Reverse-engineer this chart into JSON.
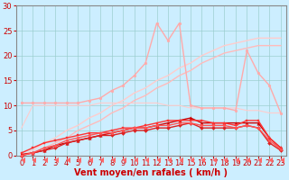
{
  "background_color": "#cceeff",
  "grid_color": "#99cccc",
  "xlabel": "Vent moyen/en rafales ( km/h )",
  "xlabel_color": "#cc0000",
  "xlabel_fontsize": 7,
  "tick_color": "#cc0000",
  "tick_fontsize": 6,
  "ylim": [
    0,
    30
  ],
  "yticks": [
    0,
    5,
    10,
    15,
    20,
    25,
    30
  ],
  "x": [
    0,
    1,
    2,
    3,
    4,
    5,
    6,
    7,
    8,
    9,
    10,
    11,
    12,
    13,
    14,
    15,
    16,
    17,
    18,
    19,
    20,
    21,
    22,
    23
  ],
  "lines": [
    {
      "y": [
        10.5,
        10.5,
        10.5,
        10.5,
        10.5,
        10.5,
        11.0,
        11.5,
        13.0,
        14.0,
        16.0,
        18.5,
        26.5,
        23.0,
        26.5,
        10.0,
        9.5,
        9.5,
        9.5,
        9.0,
        21.0,
        16.5,
        14.0,
        8.5
      ],
      "color": "#ffaaaa",
      "marker": "o",
      "markersize": 2.0,
      "linewidth": 1.0,
      "zorder": 3
    },
    {
      "y": [
        0.0,
        1.0,
        2.5,
        3.5,
        5.0,
        6.0,
        7.5,
        8.5,
        10.0,
        11.0,
        12.5,
        13.5,
        15.0,
        16.0,
        17.5,
        18.5,
        20.0,
        21.0,
        22.0,
        22.5,
        23.0,
        23.5,
        23.5,
        23.5
      ],
      "color": "#ffcccc",
      "marker": "None",
      "markersize": 0,
      "linewidth": 1.0,
      "zorder": 2
    },
    {
      "y": [
        0.0,
        0.5,
        1.5,
        2.5,
        3.5,
        5.0,
        6.0,
        7.0,
        8.5,
        9.5,
        11.0,
        12.0,
        13.5,
        14.5,
        16.0,
        17.0,
        18.5,
        19.5,
        20.5,
        21.0,
        21.5,
        22.0,
        22.0,
        22.0
      ],
      "color": "#ffbbbb",
      "marker": "None",
      "markersize": 0,
      "linewidth": 1.0,
      "zorder": 2
    },
    {
      "y": [
        5.5,
        10.0,
        10.0,
        10.0,
        10.0,
        10.0,
        10.0,
        10.5,
        10.5,
        10.5,
        10.5,
        10.5,
        10.5,
        10.0,
        10.0,
        9.5,
        9.5,
        9.5,
        9.5,
        9.5,
        9.0,
        9.0,
        8.5,
        8.5
      ],
      "color": "#ffcccc",
      "marker": "None",
      "markersize": 0,
      "linewidth": 0.8,
      "zorder": 2
    },
    {
      "y": [
        0.2,
        0.5,
        1.0,
        2.0,
        2.5,
        3.0,
        3.5,
        4.0,
        4.5,
        5.0,
        5.5,
        5.5,
        6.0,
        6.5,
        7.0,
        7.5,
        6.5,
        6.5,
        6.5,
        6.5,
        6.5,
        6.5,
        3.5,
        1.5
      ],
      "color": "#cc0000",
      "marker": "^",
      "markersize": 2.5,
      "linewidth": 1.0,
      "zorder": 4
    },
    {
      "y": [
        0.5,
        1.5,
        2.5,
        3.0,
        3.5,
        4.0,
        4.5,
        4.5,
        5.0,
        5.5,
        5.5,
        6.0,
        6.5,
        7.0,
        7.0,
        7.0,
        7.0,
        6.5,
        6.5,
        6.0,
        7.0,
        7.0,
        3.5,
        1.5
      ],
      "color": "#ff3333",
      "marker": "s",
      "markersize": 2.0,
      "linewidth": 1.0,
      "zorder": 4
    },
    {
      "y": [
        0.0,
        0.5,
        1.0,
        1.5,
        2.5,
        3.0,
        3.5,
        4.0,
        4.0,
        4.5,
        5.0,
        5.0,
        5.5,
        5.5,
        6.0,
        6.5,
        5.5,
        5.5,
        5.5,
        5.5,
        6.0,
        5.5,
        2.5,
        1.0
      ],
      "color": "#dd2222",
      "marker": "D",
      "markersize": 2.0,
      "linewidth": 1.0,
      "zorder": 4
    },
    {
      "y": [
        0.0,
        0.5,
        1.5,
        2.0,
        3.0,
        3.5,
        4.0,
        4.5,
        4.5,
        5.0,
        5.5,
        5.5,
        6.0,
        6.0,
        6.5,
        6.5,
        6.0,
        6.0,
        6.0,
        5.5,
        6.0,
        5.5,
        3.0,
        1.2
      ],
      "color": "#ff5555",
      "marker": "o",
      "markersize": 2.0,
      "linewidth": 1.0,
      "zorder": 4
    },
    {
      "y": [
        -1.0,
        -1.0,
        -1.0,
        -1.0,
        -1.0,
        -1.0,
        -1.0,
        -1.0,
        -1.0,
        -1.0,
        -1.0,
        -1.0,
        -1.0,
        -1.0,
        -1.0,
        -1.0,
        -1.0,
        -1.0,
        -1.0,
        -1.0,
        -1.0,
        -1.0,
        -1.0,
        -1.0
      ],
      "color": "#ff6666",
      "marker": 4,
      "markersize": 4.0,
      "linewidth": 0,
      "zorder": 2
    }
  ]
}
